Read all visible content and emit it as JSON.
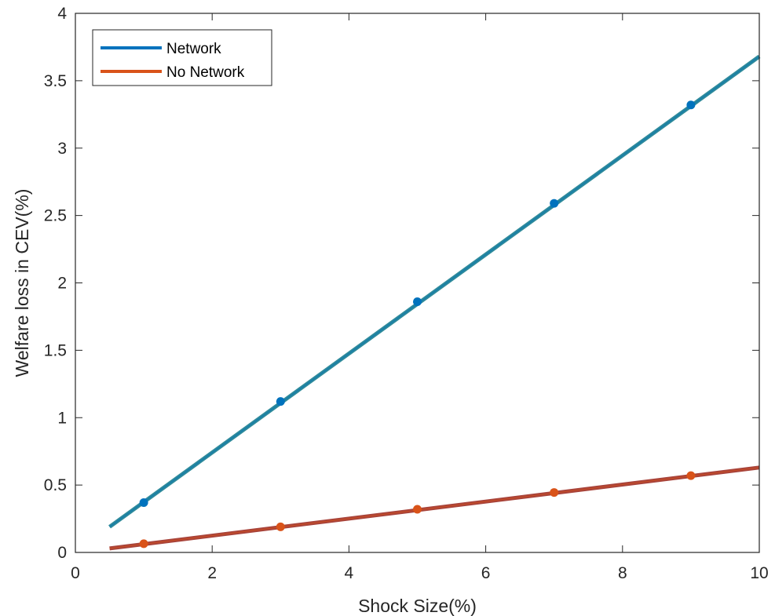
{
  "chart_data": {
    "type": "line",
    "title": "",
    "xlabel": "Shock Size(%)",
    "ylabel": "Welfare loss in CEV(%)",
    "xlim": [
      0,
      10
    ],
    "ylim": [
      0,
      4
    ],
    "xticks": [
      0,
      2,
      4,
      6,
      8,
      10
    ],
    "yticks": [
      0,
      0.5,
      1,
      1.5,
      2,
      2.5,
      3,
      3.5,
      4
    ],
    "xtick_labels": [
      "0",
      "2",
      "4",
      "6",
      "8",
      "10"
    ],
    "ytick_labels": [
      "0",
      "0.5",
      "1",
      "1.5",
      "2",
      "2.5",
      "3",
      "3.5",
      "4"
    ],
    "grid": false,
    "legend_position": "top-left",
    "series": [
      {
        "name": "Network",
        "color": "#0072BD",
        "line_color": "#2E8A9A",
        "line": {
          "x": [
            0.5,
            10
          ],
          "y": [
            0.19,
            3.68
          ]
        },
        "points": {
          "x": [
            1,
            3,
            5,
            7,
            9
          ],
          "y": [
            0.37,
            1.12,
            1.86,
            2.59,
            3.32
          ]
        }
      },
      {
        "name": "No Network",
        "color": "#D95319",
        "line_color": "#A8433A",
        "line": {
          "x": [
            0.5,
            10
          ],
          "y": [
            0.03,
            0.63
          ]
        },
        "points": {
          "x": [
            1,
            3,
            5,
            7,
            9
          ],
          "y": [
            0.065,
            0.19,
            0.32,
            0.445,
            0.57
          ]
        }
      }
    ]
  }
}
